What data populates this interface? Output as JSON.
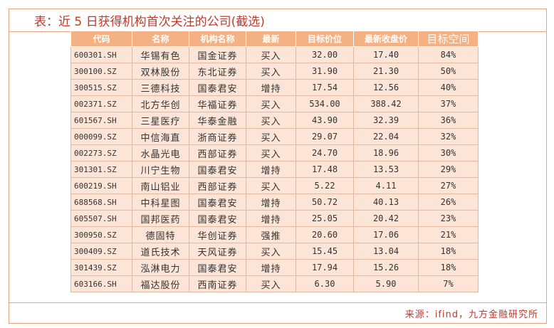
{
  "title": "表：近 5 日获得机构首次关注的公司(截选)",
  "source": "来源：ifind，九方金融研究所",
  "colors": {
    "header_bg": "#f4b183",
    "row_bg": "#fce4d6",
    "accent": "#c0392b"
  },
  "table": {
    "headers": [
      "代码",
      "名称",
      "机构名称",
      "最新",
      "目标价位",
      "最新收盘价",
      "目标空间"
    ],
    "rows": [
      [
        "600301.SH",
        "华锡有色",
        "国金证券",
        "买入",
        "32.00",
        "17.40",
        "84%"
      ],
      [
        "300100.SZ",
        "双林股份",
        "东北证券",
        "买入",
        "31.90",
        "21.30",
        "50%"
      ],
      [
        "300515.SZ",
        "三德科技",
        "国泰君安",
        "增持",
        "17.54",
        "12.56",
        "40%"
      ],
      [
        "002371.SZ",
        "北方华创",
        "华福证券",
        "买入",
        "534.00",
        "388.42",
        "37%"
      ],
      [
        "601567.SH",
        "三星医疗",
        "华泰金融",
        "买入",
        "43.90",
        "32.39",
        "36%"
      ],
      [
        "000099.SZ",
        "中信海直",
        "浙商证券",
        "买入",
        "29.07",
        "22.04",
        "32%"
      ],
      [
        "002273.SZ",
        "水晶光电",
        "西部证券",
        "买入",
        "24.70",
        "18.96",
        "30%"
      ],
      [
        "301301.SZ",
        "川宁生物",
        "国泰君安",
        "增持",
        "17.48",
        "13.53",
        "29%"
      ],
      [
        "600219.SH",
        "南山铝业",
        "西部证券",
        "买入",
        "5.22",
        "4.11",
        "27%"
      ],
      [
        "688568.SH",
        "中科星图",
        "国泰君安",
        "增持",
        "50.72",
        "40.13",
        "26%"
      ],
      [
        "605507.SH",
        "国邦医药",
        "国泰君安",
        "增持",
        "25.05",
        "20.42",
        "23%"
      ],
      [
        "300950.SZ",
        "德固特",
        "华创证券",
        "强推",
        "20.60",
        "17.06",
        "21%"
      ],
      [
        "300409.SZ",
        "道氏技术",
        "天风证券",
        "买入",
        "15.45",
        "13.04",
        "18%"
      ],
      [
        "301439.SZ",
        "泓淋电力",
        "国泰君安",
        "增持",
        "17.94",
        "15.26",
        "18%"
      ],
      [
        "603166.SH",
        "福达股份",
        "西南证券",
        "买入",
        "6.30",
        "5.90",
        "7%"
      ]
    ]
  }
}
